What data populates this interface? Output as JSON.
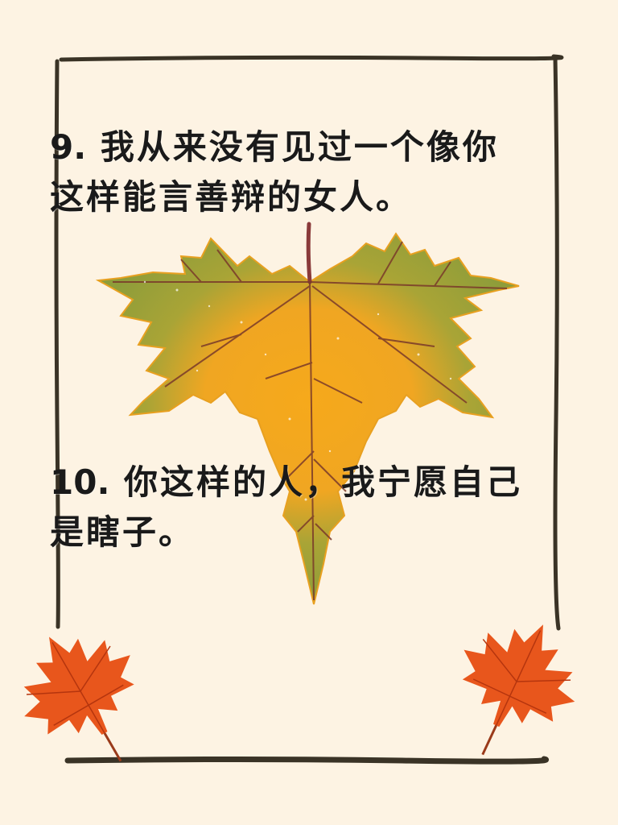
{
  "quotes": [
    {
      "number": "9.",
      "text": "我从来没有见过一个像你这样能言善辩的女人。"
    },
    {
      "number": "10.",
      "text": "你这样的人，我宁愿自己是瞎子。"
    }
  ],
  "colors": {
    "background": "#fdf3e3",
    "frame": "#3a3326",
    "leaf_green": "#8fa03a",
    "leaf_yellow": "#f2a81c",
    "leaf_vein": "#7a3a2a",
    "maple_orange": "#e8561c"
  },
  "decorations": {
    "center_leaf": "sycamore-leaf-icon",
    "bottom_left_leaf": "maple-leaf-icon",
    "bottom_right_leaf": "maple-leaf-icon"
  }
}
